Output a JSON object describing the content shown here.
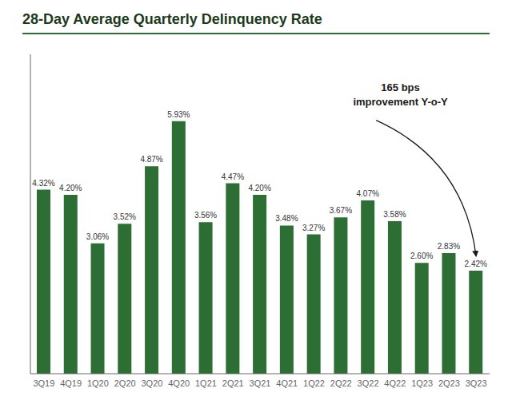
{
  "chart_data": {
    "type": "bar",
    "title": "28-Day Average Quarterly Delinquency Rate",
    "categories": [
      "3Q19",
      "4Q19",
      "1Q20",
      "2Q20",
      "3Q20",
      "4Q20",
      "1Q21",
      "2Q21",
      "3Q21",
      "4Q21",
      "1Q22",
      "2Q22",
      "3Q22",
      "4Q22",
      "1Q23",
      "2Q23",
      "3Q23"
    ],
    "values": [
      4.32,
      4.2,
      3.06,
      3.52,
      4.87,
      5.93,
      3.56,
      4.47,
      4.2,
      3.48,
      3.27,
      3.67,
      4.07,
      3.58,
      2.6,
      2.83,
      2.42
    ],
    "value_labels": [
      "4.32%",
      "4.20%",
      "3.06%",
      "3.52%",
      "4.87%",
      "5.93%",
      "3.56%",
      "4.47%",
      "4.20%",
      "3.48%",
      "3.27%",
      "3.67%",
      "4.07%",
      "3.58%",
      "2.60%",
      "2.83%",
      "2.42%"
    ],
    "color": "#2d6e35",
    "ylim": [
      0,
      7.5
    ],
    "data_labels": true,
    "tick_labels": "x",
    "grid": false,
    "annotation": "165 bps\nimprovement Y-o-Y"
  }
}
